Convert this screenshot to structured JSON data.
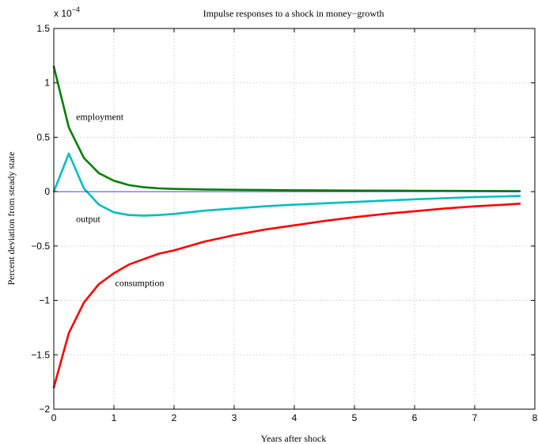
{
  "chart_data": {
    "type": "line",
    "title": "Impulse responses to a shock in money−growth",
    "xlabel": "Years after shock",
    "ylabel": "Percent deviation from steady state",
    "exponent_label": "x 10",
    "exponent_power": "−4",
    "xlim": [
      0,
      8
    ],
    "ylim": [
      -2,
      1.5
    ],
    "grid": true,
    "x_ticks": [
      "0",
      "1",
      "2",
      "3",
      "4",
      "5",
      "6",
      "7",
      "8"
    ],
    "y_ticks": [
      "−2",
      "−1.5",
      "−1",
      "−0.5",
      "0",
      "0.5",
      "1",
      "1.5"
    ],
    "x_tick_values": [
      0,
      1,
      2,
      3,
      4,
      5,
      6,
      7,
      8
    ],
    "y_tick_values": [
      -2,
      -1.5,
      -1,
      -0.5,
      0,
      0.5,
      1,
      1.5
    ],
    "series": [
      {
        "name": "employment",
        "color": "#007f00",
        "x": [
          0,
          0.25,
          0.5,
          0.75,
          1,
          1.25,
          1.5,
          1.75,
          2,
          2.5,
          3,
          3.5,
          4,
          5,
          6,
          7,
          7.75
        ],
        "y": [
          1.15,
          0.59,
          0.31,
          0.17,
          0.1,
          0.06,
          0.04,
          0.03,
          0.025,
          0.02,
          0.017,
          0.015,
          0.013,
          0.01,
          0.008,
          0.006,
          0.005
        ]
      },
      {
        "name": "output",
        "color": "#00bfbf",
        "x": [
          0,
          0.25,
          0.5,
          0.75,
          1,
          1.25,
          1.5,
          1.75,
          2,
          2.5,
          3,
          3.5,
          4,
          5,
          6,
          7,
          7.75
        ],
        "y": [
          0,
          0.35,
          0.03,
          -0.12,
          -0.19,
          -0.215,
          -0.22,
          -0.215,
          -0.205,
          -0.175,
          -0.155,
          -0.135,
          -0.12,
          -0.095,
          -0.07,
          -0.05,
          -0.04
        ]
      },
      {
        "name": "consumption",
        "color": "#ff0000",
        "x": [
          0,
          0.25,
          0.5,
          0.75,
          1,
          1.25,
          1.5,
          1.75,
          2,
          2.5,
          3,
          3.5,
          4,
          4.5,
          5,
          5.5,
          6,
          6.5,
          7,
          7.5,
          7.75
        ],
        "y": [
          -1.8,
          -1.3,
          -1.02,
          -0.85,
          -0.75,
          -0.67,
          -0.62,
          -0.57,
          -0.54,
          -0.46,
          -0.4,
          -0.35,
          -0.31,
          -0.27,
          -0.235,
          -0.205,
          -0.18,
          -0.155,
          -0.135,
          -0.12,
          -0.11
        ]
      },
      {
        "name": "",
        "color": "#0000ff",
        "x": [
          0,
          7.75
        ],
        "y": [
          0,
          0
        ]
      }
    ],
    "annotations": [
      {
        "text": "employment",
        "x": 0.37,
        "y": 0.66
      },
      {
        "text": "output",
        "x": 0.37,
        "y": -0.28
      },
      {
        "text": "consumption",
        "x": 1.02,
        "y": -0.87
      }
    ]
  }
}
